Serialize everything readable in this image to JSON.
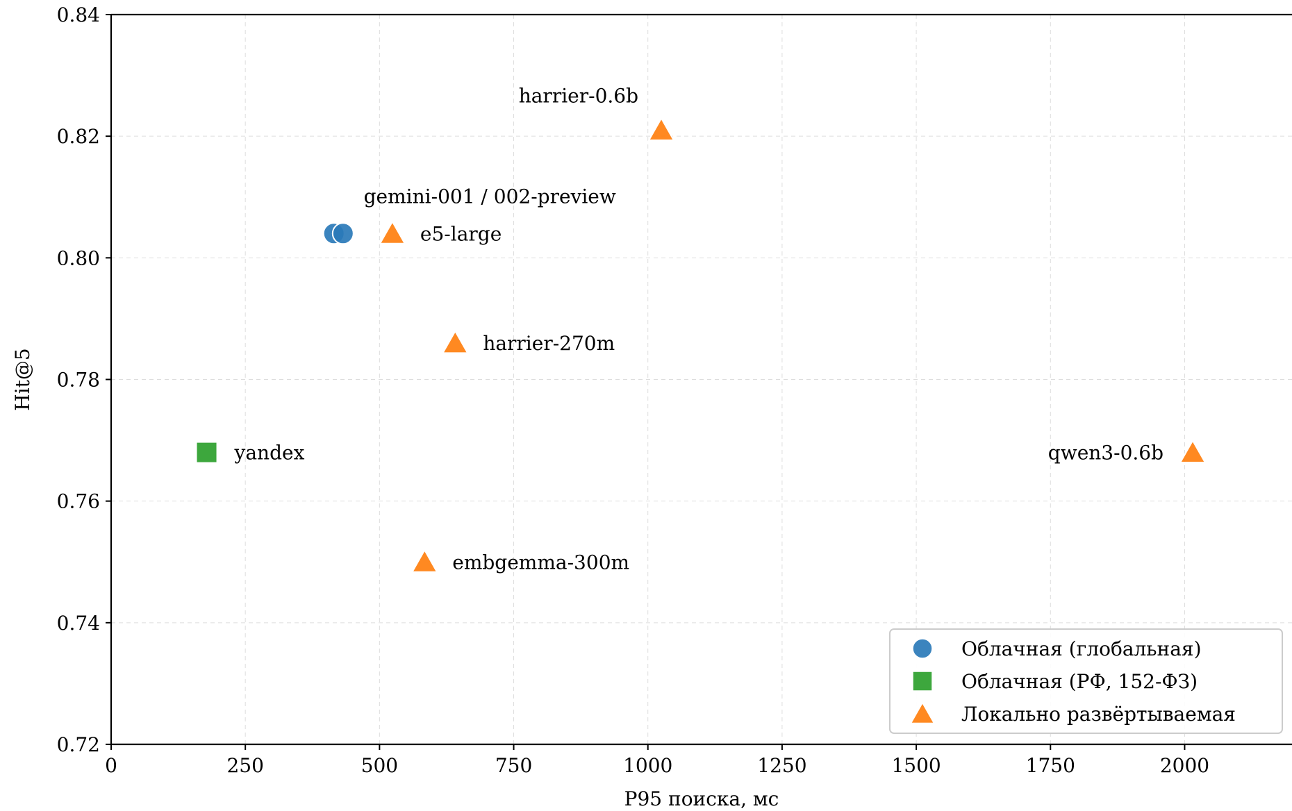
{
  "chart_data": {
    "type": "scatter",
    "xlabel": "P95 поиска, мс",
    "ylabel": "Hit@5",
    "xlim": [
      0,
      2200
    ],
    "ylim": [
      0.72,
      0.84
    ],
    "xticks": [
      0,
      250,
      500,
      750,
      1000,
      1250,
      1500,
      1750,
      2000
    ],
    "xtick_labels": [
      "0",
      "250",
      "500",
      "750",
      "1000",
      "1250",
      "1500",
      "1750",
      "2000"
    ],
    "yticks": [
      0.72,
      0.74,
      0.76,
      0.78,
      0.8,
      0.82,
      0.84
    ],
    "ytick_labels": [
      "0.72",
      "0.74",
      "0.76",
      "0.78",
      "0.80",
      "0.82",
      "0.84"
    ],
    "grid": true,
    "legend_position": "bottom-right",
    "series": [
      {
        "name": "Облачная (глобальная)",
        "marker": "circle",
        "color": "#2a7ab9",
        "points": [
          {
            "x": 415,
            "y": 0.804
          },
          {
            "x": 432,
            "y": 0.804
          }
        ]
      },
      {
        "name": "Облачная (РФ, 152-ФЗ)",
        "marker": "square",
        "color": "#2ca02c",
        "points": [
          {
            "x": 178,
            "y": 0.768
          }
        ]
      },
      {
        "name": "Локально развёртываемая",
        "marker": "triangle",
        "color": "#ff7f0e",
        "points": [
          {
            "x": 1025,
            "y": 0.821
          },
          {
            "x": 524,
            "y": 0.804
          },
          {
            "x": 641,
            "y": 0.786
          },
          {
            "x": 2015,
            "y": 0.768
          },
          {
            "x": 584,
            "y": 0.75
          }
        ]
      }
    ],
    "annotations": [
      {
        "text": "harrier-0.6b",
        "x": 1025,
        "y": 0.821,
        "pos": "above-left"
      },
      {
        "text": "gemini-001 / 002-preview",
        "x": 424,
        "y": 0.804,
        "pos": "above-right"
      },
      {
        "text": "e5-large",
        "x": 524,
        "y": 0.804,
        "pos": "right"
      },
      {
        "text": "harrier-270m",
        "x": 641,
        "y": 0.786,
        "pos": "right"
      },
      {
        "text": "yandex",
        "x": 178,
        "y": 0.768,
        "pos": "right"
      },
      {
        "text": "qwen3-0.6b",
        "x": 2015,
        "y": 0.768,
        "pos": "left"
      },
      {
        "text": "embgemma-300m",
        "x": 584,
        "y": 0.75,
        "pos": "right"
      }
    ]
  }
}
